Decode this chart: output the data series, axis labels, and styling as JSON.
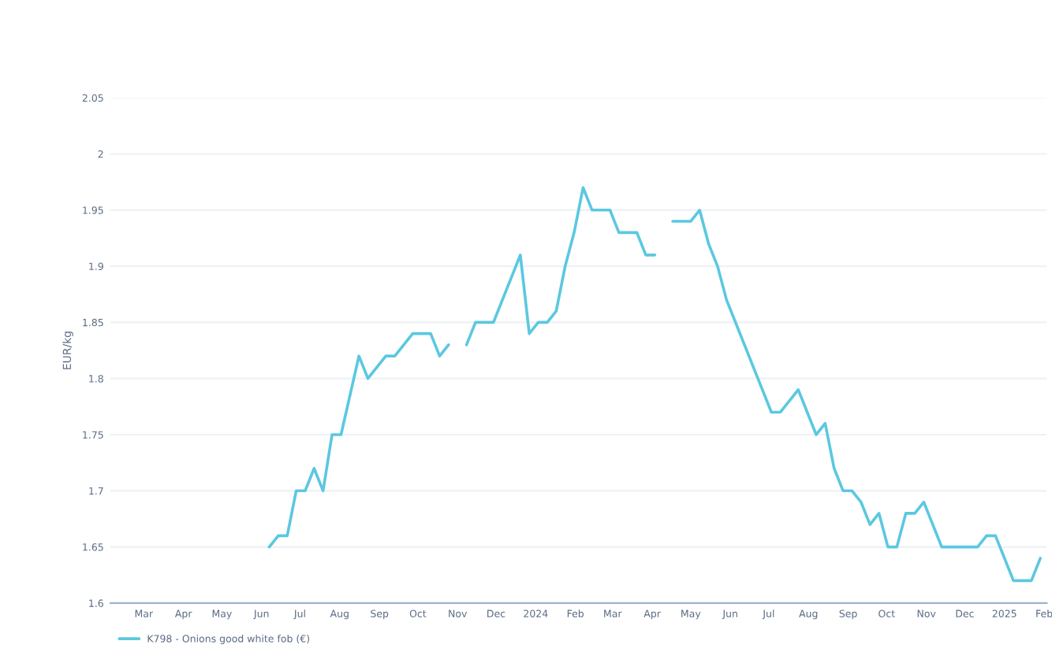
{
  "chart_data": {
    "type": "line",
    "ylabel": "EUR/kg",
    "x": [
      "2023-06-07",
      "2023-06-14",
      "2023-06-21",
      "2023-06-28",
      "2023-07-05",
      "2023-07-12",
      "2023-07-19",
      "2023-07-26",
      "2023-08-02",
      "2023-08-16",
      "2023-08-23",
      "2023-09-06",
      "2023-09-13",
      "2023-09-27",
      "2023-10-11",
      "2023-10-18",
      "2023-10-25",
      "2023-11-01",
      "2023-11-08",
      "2023-11-15",
      "2023-11-29",
      "2023-12-20",
      "2023-12-27",
      "2024-01-03",
      "2024-01-10",
      "2024-01-17",
      "2024-01-24",
      "2024-01-31",
      "2024-02-07",
      "2024-02-14",
      "2024-02-28",
      "2024-03-06",
      "2024-03-20",
      "2024-03-27",
      "2024-04-03",
      "2024-04-10",
      "2024-04-17",
      "2024-05-01",
      "2024-05-08",
      "2024-05-15",
      "2024-05-22",
      "2024-05-29",
      "2024-07-03",
      "2024-07-10",
      "2024-07-24",
      "2024-08-07",
      "2024-08-14",
      "2024-08-21",
      "2024-08-28",
      "2024-09-04",
      "2024-09-11",
      "2024-09-18",
      "2024-09-25",
      "2024-10-02",
      "2024-10-09",
      "2024-10-16",
      "2024-10-23",
      "2024-10-30",
      "2024-11-13",
      "2024-12-11",
      "2024-12-18",
      "2024-12-25",
      "2025-01-08",
      "2025-01-22",
      "2025-01-29"
    ],
    "series": [
      {
        "name": "K798 - Onions good white fob (€)",
        "color": "#5bc8e0",
        "values": [
          1.65,
          1.66,
          1.66,
          1.7,
          1.7,
          1.72,
          1.7,
          1.75,
          1.75,
          1.82,
          1.8,
          1.82,
          1.82,
          1.84,
          1.84,
          1.82,
          1.83,
          null,
          1.83,
          1.85,
          1.85,
          1.91,
          1.84,
          1.85,
          1.85,
          1.86,
          1.9,
          1.93,
          1.97,
          1.95,
          1.95,
          1.93,
          1.93,
          1.91,
          1.91,
          null,
          1.94,
          1.94,
          1.95,
          1.92,
          1.9,
          1.87,
          1.77,
          1.77,
          1.79,
          1.75,
          1.76,
          1.72,
          1.7,
          1.7,
          1.69,
          1.67,
          1.68,
          1.65,
          1.65,
          1.68,
          1.68,
          1.69,
          1.65,
          1.65,
          1.66,
          1.66,
          1.62,
          1.62,
          1.64
        ]
      }
    ],
    "xlim": [
      "2023-02-03",
      "2025-02-03"
    ],
    "xticks": [
      {
        "value": "2023-03-01",
        "label": "Mar"
      },
      {
        "value": "2023-04-01",
        "label": "Apr"
      },
      {
        "value": "2023-05-01",
        "label": "May"
      },
      {
        "value": "2023-06-01",
        "label": "Jun"
      },
      {
        "value": "2023-07-01",
        "label": "Jul"
      },
      {
        "value": "2023-08-01",
        "label": "Aug"
      },
      {
        "value": "2023-09-01",
        "label": "Sep"
      },
      {
        "value": "2023-10-01",
        "label": "Oct"
      },
      {
        "value": "2023-11-01",
        "label": "Nov"
      },
      {
        "value": "2023-12-01",
        "label": "Dec"
      },
      {
        "value": "2024-01-01",
        "label": "2024"
      },
      {
        "value": "2024-02-01",
        "label": "Feb"
      },
      {
        "value": "2024-03-01",
        "label": "Mar"
      },
      {
        "value": "2024-04-01",
        "label": "Apr"
      },
      {
        "value": "2024-05-01",
        "label": "May"
      },
      {
        "value": "2024-06-01",
        "label": "Jun"
      },
      {
        "value": "2024-07-01",
        "label": "Jul"
      },
      {
        "value": "2024-08-01",
        "label": "Aug"
      },
      {
        "value": "2024-09-01",
        "label": "Sep"
      },
      {
        "value": "2024-10-01",
        "label": "Oct"
      },
      {
        "value": "2024-11-01",
        "label": "Nov"
      },
      {
        "value": "2024-12-01",
        "label": "Dec"
      },
      {
        "value": "2025-01-01",
        "label": "2025"
      },
      {
        "value": "2025-02-01",
        "label": "Feb"
      }
    ],
    "ylim": [
      1.6,
      2.05
    ],
    "yticks": [
      1.6,
      1.65,
      1.7,
      1.75,
      1.8,
      1.85,
      1.9,
      1.95,
      2,
      2.05
    ],
    "grid": "y",
    "legend": "bottom left"
  }
}
